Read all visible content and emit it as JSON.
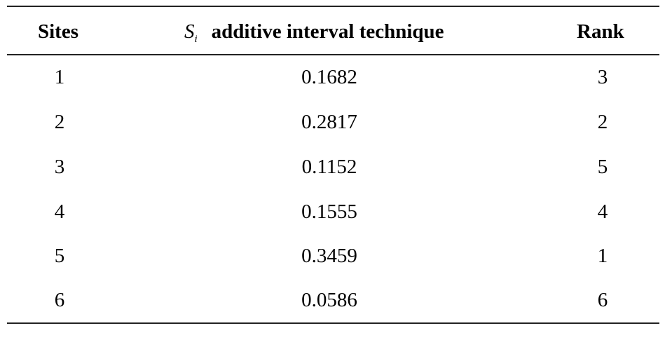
{
  "table": {
    "headers": {
      "sites": "Sites",
      "symbol": "S",
      "symbol_sub": "i",
      "metric": "additive interval technique",
      "rank": "Rank"
    },
    "rows": [
      {
        "site": "1",
        "value": "0.1682",
        "rank": "3"
      },
      {
        "site": "2",
        "value": "0.2817",
        "rank": "2"
      },
      {
        "site": "3",
        "value": "0.1152",
        "rank": "5"
      },
      {
        "site": "4",
        "value": "0.1555",
        "rank": "4"
      },
      {
        "site": "5",
        "value": "0.3459",
        "rank": "1"
      },
      {
        "site": "6",
        "value": "0.0586",
        "rank": "6"
      }
    ]
  }
}
